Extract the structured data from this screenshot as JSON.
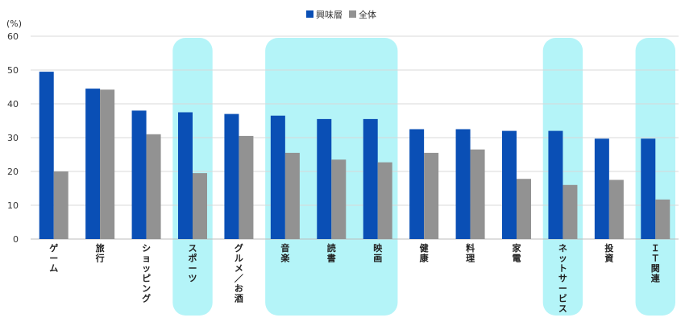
{
  "chart_data": {
    "type": "bar",
    "unit": "(%)",
    "categories": [
      "ゲーム",
      "旅行",
      "ショッピング",
      "スポーツ",
      "グルメ／お酒",
      "音楽",
      "読書",
      "映画",
      "健康",
      "料理",
      "家電",
      "ネットサービス",
      "投資",
      "ＩＴ関連"
    ],
    "series": [
      {
        "name": "興味層",
        "color": "#0a4fb5",
        "values": [
          49.5,
          44.5,
          38.0,
          37.5,
          37.0,
          36.5,
          35.5,
          35.5,
          32.5,
          32.5,
          32.0,
          32.0,
          29.7,
          29.7
        ]
      },
      {
        "name": "全体",
        "color": "#929292",
        "values": [
          20.0,
          44.2,
          31.0,
          19.5,
          30.5,
          25.5,
          23.5,
          22.7,
          25.5,
          26.5,
          17.8,
          16.0,
          17.5,
          11.7
        ]
      }
    ],
    "ylim": [
      0,
      60
    ],
    "yticks": [
      0,
      10,
      20,
      30,
      40,
      50,
      60
    ],
    "grid": true,
    "legend": "top-center",
    "highlight_groups": [
      [
        3,
        3
      ],
      [
        5,
        7
      ],
      [
        11,
        11
      ],
      [
        13,
        13
      ]
    ],
    "highlight_color": "#b4f4f8"
  }
}
